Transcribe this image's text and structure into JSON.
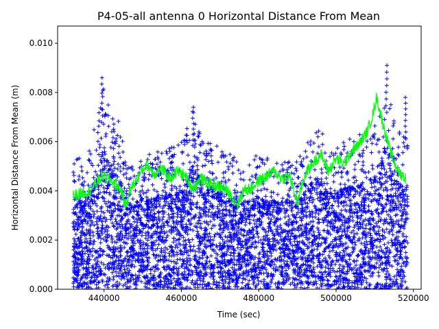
{
  "chart_data": {
    "type": "scatter",
    "title": "P4-05-all antenna 0 Horizontal Distance From Mean",
    "xlabel": "Time (sec)",
    "ylabel": "Horizontal Distance From Mean (m)",
    "xlim": [
      428000,
      522000
    ],
    "ylim": [
      0,
      0.0107
    ],
    "xticks": [
      440000,
      460000,
      480000,
      500000,
      520000
    ],
    "xtick_labels": [
      "440000",
      "460000",
      "480000",
      "500000",
      "520000"
    ],
    "yticks": [
      0,
      0.002,
      0.004,
      0.006,
      0.008,
      0.01
    ],
    "ytick_labels": [
      "0.000",
      "0.002",
      "0.004",
      "0.006",
      "0.008",
      "0.010"
    ],
    "grid": false,
    "legend": "none",
    "series": [
      {
        "kind": "points",
        "marker": "+",
        "color": "#0000ff",
        "x_range": [
          432000,
          518500
        ],
        "y_min": 0,
        "envelope_x": [
          432000,
          435000,
          438000,
          440000,
          442000,
          444000,
          446000,
          450000,
          455000,
          460000,
          463000,
          466000,
          470000,
          473000,
          476000,
          480000,
          484000,
          488000,
          492000,
          495000,
          498000,
          502000,
          506000,
          509000,
          511000,
          513000,
          515000,
          517000,
          518500
        ],
        "envelope_y": [
          0.0055,
          0.0052,
          0.0068,
          0.0086,
          0.0072,
          0.0068,
          0.005,
          0.0055,
          0.0056,
          0.006,
          0.0073,
          0.0062,
          0.0059,
          0.0055,
          0.0052,
          0.0055,
          0.0053,
          0.0052,
          0.0058,
          0.0068,
          0.0059,
          0.006,
          0.0063,
          0.0066,
          0.0068,
          0.009,
          0.0068,
          0.0063,
          0.0062
        ],
        "highlights": [
          {
            "x": 439500,
            "y": 0.0086
          },
          {
            "x": 463000,
            "y": 0.0074
          },
          {
            "x": 513000,
            "y": 0.0091
          },
          {
            "x": 518000,
            "y": 0.0078
          }
        ]
      },
      {
        "kind": "line",
        "color": "#00ff00",
        "x": [
          432000,
          434000,
          436000,
          438000,
          439500,
          441000,
          443000,
          444500,
          445500,
          447000,
          449000,
          451000,
          453000,
          455000,
          457000,
          459000,
          461000,
          463000,
          465000,
          467000,
          469000,
          471000,
          473000,
          474500,
          476000,
          478000,
          480000,
          482000,
          484000,
          486000,
          488000,
          490000,
          492000,
          494000,
          496000,
          498000,
          500000,
          502000,
          504000,
          506000,
          508000,
          509500,
          510500,
          512000,
          514000,
          516000,
          518000
        ],
        "y": [
          0.0038,
          0.0039,
          0.004,
          0.0043,
          0.0046,
          0.0045,
          0.0043,
          0.004,
          0.0034,
          0.0041,
          0.0046,
          0.0051,
          0.0047,
          0.0049,
          0.0045,
          0.0048,
          0.0046,
          0.0041,
          0.0045,
          0.0043,
          0.0042,
          0.0041,
          0.0038,
          0.0034,
          0.004,
          0.0041,
          0.0044,
          0.0046,
          0.0048,
          0.0045,
          0.0046,
          0.0035,
          0.0047,
          0.0051,
          0.0055,
          0.0048,
          0.0053,
          0.0051,
          0.0056,
          0.0059,
          0.0064,
          0.0071,
          0.0078,
          0.0068,
          0.0056,
          0.0048,
          0.0045
        ]
      }
    ]
  }
}
